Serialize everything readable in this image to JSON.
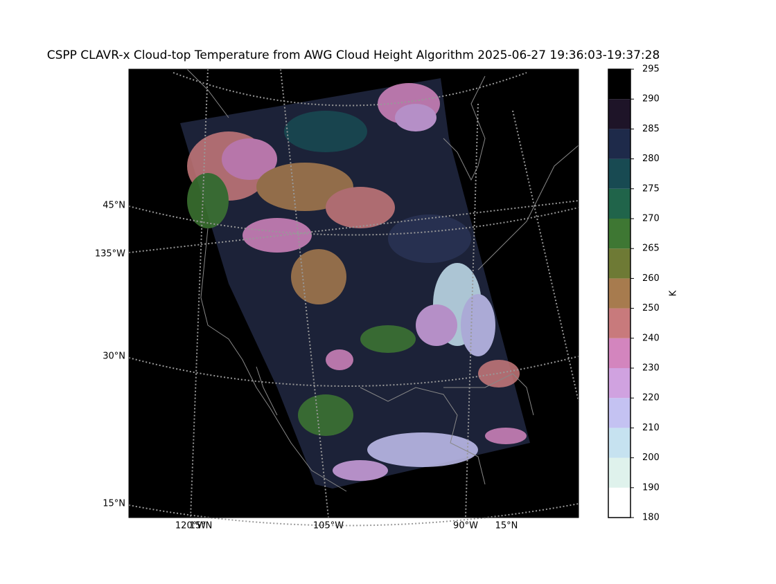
{
  "title": "CSPP CLAVR-x Cloud-top Temperature from AWG Cloud Height Algorithm 2025-06-27 19:36:03-19:37:28",
  "map_labels": [
    "45°N",
    "135°W",
    "30°N",
    "15°N",
    "120°W",
    "15°N",
    "105°W",
    "90°W",
    "15°N"
  ],
  "colorbar": {
    "label": "K",
    "ticks": [
      180,
      190,
      200,
      210,
      220,
      230,
      240,
      250,
      260,
      265,
      270,
      275,
      280,
      285,
      290,
      295
    ],
    "colors": [
      "#ffffff",
      "#dff2ec",
      "#c6e2f0",
      "#c4c2f2",
      "#d0a2e0",
      "#d385be",
      "#c87a7c",
      "#a77b4e",
      "#6e7a35",
      "#3e7733",
      "#20644a",
      "#184a52",
      "#1e2a4a",
      "#1e1428",
      "#000000"
    ]
  }
}
